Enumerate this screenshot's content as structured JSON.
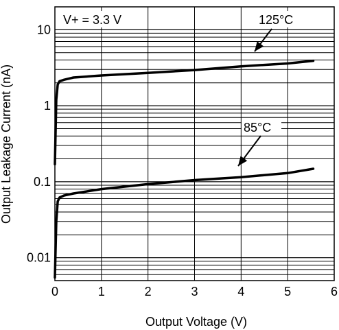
{
  "chart_data": {
    "type": "line",
    "xlabel": "Output Voltage (V)",
    "ylabel": "Output Leakage Current (nA)",
    "x_scale": "linear",
    "y_scale": "log",
    "xlim": [
      0,
      6
    ],
    "ylim": [
      0.005,
      20
    ],
    "x_ticks": [
      {
        "value": 0,
        "label": "0"
      },
      {
        "value": 1,
        "label": "1"
      },
      {
        "value": 2,
        "label": "2"
      },
      {
        "value": 3,
        "label": "3"
      },
      {
        "value": 4,
        "label": "4"
      },
      {
        "value": 5,
        "label": "5"
      },
      {
        "value": 6,
        "label": "6"
      }
    ],
    "y_ticks": [
      {
        "value": 0.01,
        "label": "0.01"
      },
      {
        "value": 0.1,
        "label": "0.1"
      },
      {
        "value": 1,
        "label": "1"
      },
      {
        "value": 10,
        "label": "10"
      }
    ],
    "grid": true,
    "series": [
      {
        "name": "125°C",
        "color": "#000000",
        "x": [
          0,
          0.03,
          0.06,
          0.1,
          0.2,
          0.4,
          1.0,
          2.0,
          3.0,
          4.0,
          5.0,
          5.55
        ],
        "y": [
          0.17,
          1.2,
          1.9,
          2.1,
          2.2,
          2.35,
          2.5,
          2.7,
          2.95,
          3.3,
          3.6,
          3.9
        ]
      },
      {
        "name": "85°C",
        "color": "#000000",
        "x": [
          0,
          0.03,
          0.06,
          0.1,
          0.2,
          0.4,
          1.0,
          2.0,
          3.0,
          4.0,
          5.0,
          5.55
        ],
        "y": [
          0.0055,
          0.03,
          0.055,
          0.062,
          0.066,
          0.07,
          0.08,
          0.093,
          0.105,
          0.115,
          0.13,
          0.148
        ]
      }
    ],
    "annotations": [
      {
        "text": "V+ = 3.3 V"
      },
      {
        "text": "125°C"
      },
      {
        "text": "85°C"
      }
    ]
  }
}
